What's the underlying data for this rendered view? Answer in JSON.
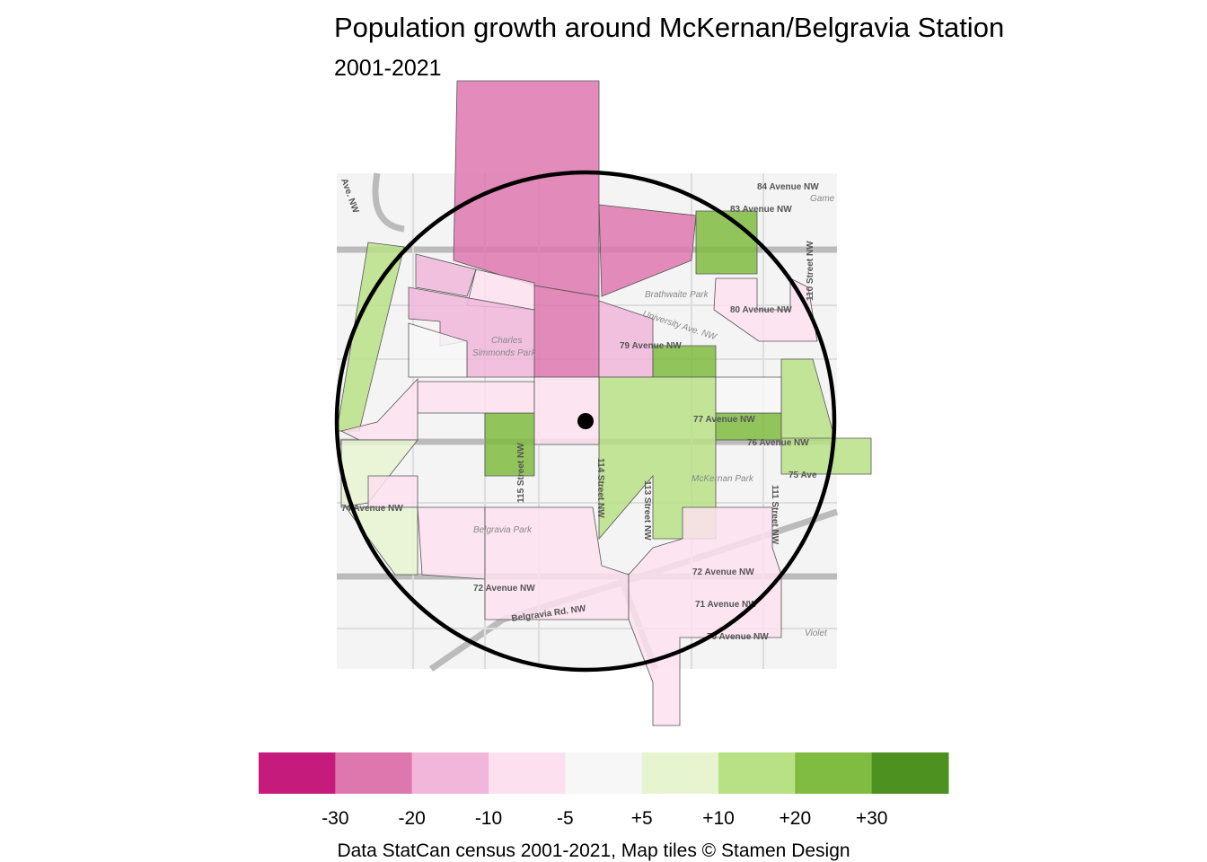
{
  "title": "Population growth around McKernan/Belgravia Station",
  "subtitle": "2001-2021",
  "caption": "Data StatCan census 2001-2021, Map tiles © Stamen Design",
  "legend": {
    "colors": [
      "#c51b7d",
      "#de77ae",
      "#f1b6da",
      "#fde0ef",
      "#f7f7f7",
      "#e6f5d0",
      "#b8e186",
      "#7fbc41",
      "#4d9221"
    ],
    "labels": [
      "-30",
      "-20",
      "-10",
      "-5",
      "+5",
      "+10",
      "+20",
      "+30"
    ]
  },
  "map": {
    "labels": [
      "84 Avenue NW",
      "83 Avenue NW",
      "Game",
      "Brathwaite Park",
      "80 Avenue NW",
      "University Ave. NW",
      "79 Avenue NW",
      "Charles",
      "Simmonds Park",
      "77 Avenue NW",
      "76 Avenue NW",
      "75 Ave",
      "McKernan Park",
      "115 Street NW",
      "114 Street NW",
      "113 Street NW",
      "111 Street NW",
      "110 Street NW",
      "74 Avenue NW",
      "Belgravia Park",
      "72 Avenue NW",
      "71 Avenue NW",
      "70 Avenue NW",
      "Belgravia Rd. NW",
      "Violet",
      "Ave. NW"
    ]
  }
}
